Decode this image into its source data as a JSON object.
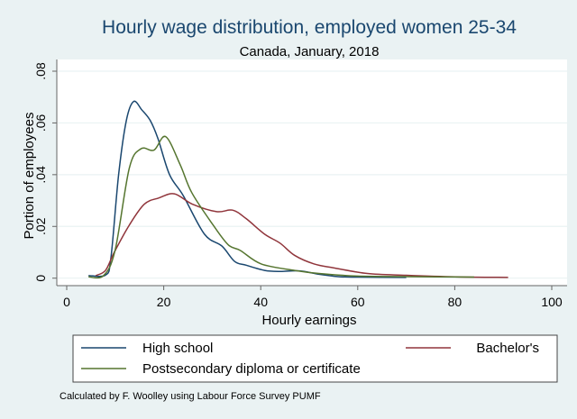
{
  "chart_data": {
    "type": "line",
    "title": "Hourly wage distribution, employed women 25-34",
    "subtitle": "Canada, January, 2018",
    "xlabel": "Hourly earnings",
    "ylabel": "Portion of employees",
    "xlim": [
      0,
      100
    ],
    "ylim": [
      0,
      0.08
    ],
    "xticks": [
      0,
      20,
      40,
      60,
      80,
      100
    ],
    "xtick_labels": [
      "0",
      "20",
      "40",
      "60",
      "80",
      "100"
    ],
    "yticks": [
      0,
      0.02,
      0.04,
      0.06,
      0.08
    ],
    "ytick_labels": [
      "0",
      ".02",
      ".04",
      ".06",
      ".08"
    ],
    "grid": true,
    "legend_position": "bottom",
    "note": "Calculated by F. Woolley using Labour Force Survey PUMF",
    "series": [
      {
        "name": "High school",
        "color": "#1a476f",
        "x": [
          4.5,
          8,
          9.1,
          10.7,
          12.3,
          13.8,
          15.5,
          17.2,
          18.8,
          21.2,
          24,
          28.4,
          32,
          34.6,
          37,
          40.8,
          44,
          48,
          52,
          56,
          60,
          70
        ],
        "y": [
          0.001,
          0.0012,
          0.0076,
          0.04,
          0.061,
          0.0683,
          0.065,
          0.061,
          0.054,
          0.04,
          0.032,
          0.017,
          0.0124,
          0.0065,
          0.005,
          0.003,
          0.0026,
          0.0028,
          0.0015,
          0.0006,
          0.0004,
          0.0003
        ]
      },
      {
        "name": "Bachelor's",
        "color": "#90353b",
        "x": [
          6,
          8,
          9.8,
          12.9,
          16,
          19,
          22.2,
          25.9,
          30.9,
          34.2,
          37,
          40.8,
          44,
          47,
          51,
          55,
          62,
          70,
          80,
          91
        ],
        "y": [
          0.001,
          0.003,
          0.01,
          0.0205,
          0.0286,
          0.031,
          0.0326,
          0.0286,
          0.0257,
          0.0263,
          0.023,
          0.017,
          0.0135,
          0.0088,
          0.0055,
          0.004,
          0.0018,
          0.0011,
          0.0005,
          0.0003
        ]
      },
      {
        "name": "Postsecondary diploma or certificate",
        "color": "#55752f",
        "x": [
          4.5,
          7.6,
          10,
          12.9,
          15.3,
          18,
          20.4,
          23.4,
          25.8,
          30.2,
          33.3,
          35.8,
          40.1,
          47,
          52,
          60,
          70,
          84
        ],
        "y": [
          0.0005,
          0.001,
          0.011,
          0.0425,
          0.05,
          0.0495,
          0.0547,
          0.0438,
          0.033,
          0.0205,
          0.0129,
          0.0107,
          0.0055,
          0.003,
          0.0018,
          0.0008,
          0.0006,
          0.0004
        ]
      }
    ]
  }
}
